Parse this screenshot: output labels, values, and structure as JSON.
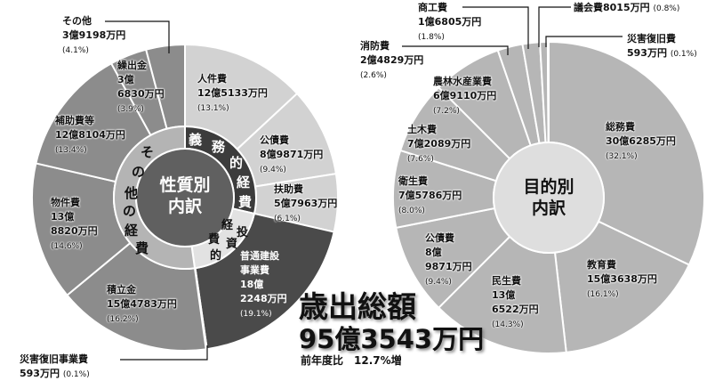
{
  "chart_data": [
    {
      "type": "pie",
      "donut": true,
      "center_label": "性質別\n内訳",
      "groups": [
        {
          "name": "義務的経費",
          "chars": [
            "義",
            "務",
            "的",
            "経",
            "費"
          ],
          "color": "#3c3c3c"
        },
        {
          "name": "投資的経費",
          "chars": [
            "経",
            "投",
            "費",
            "資",
            "的"
          ],
          "color": "#e2e2e2"
        },
        {
          "name": "その他の経費",
          "chars": [
            "そ",
            "の",
            "他",
            "の",
            "経",
            "費"
          ],
          "color": "#b4b4b4"
        }
      ],
      "slices": [
        {
          "name": "人件費",
          "amount": "12億5133万円",
          "pct": "(13.1%)",
          "value": 13.1,
          "group": 0,
          "color": "#d2d2d2"
        },
        {
          "name": "公債費",
          "amount": "8億9871万円",
          "pct": "(9.4%)",
          "value": 9.4,
          "group": 0,
          "color": "#d2d2d2"
        },
        {
          "name": "扶助費",
          "amount": "5億7963万円",
          "pct": "(6.1%)",
          "value": 6.1,
          "group": 0,
          "color": "#d2d2d2"
        },
        {
          "name": "普通建設\n事業費",
          "amount": "18億\n2248万円",
          "pct": "(19.1%)",
          "value": 19.1,
          "group": 1,
          "color": "#4a4a4a"
        },
        {
          "name": "災害復旧事業費",
          "amount": "593万円",
          "pct": "(0.1%)",
          "value": 0.1,
          "group": 1,
          "color": "#4a4a4a"
        },
        {
          "name": "積立金",
          "amount": "15億4783万円",
          "pct": "(16.2%)",
          "value": 16.2,
          "group": 2,
          "color": "#8c8c8c"
        },
        {
          "name": "物件費",
          "amount": "13億\n8820万円",
          "pct": "(14.6%)",
          "value": 14.6,
          "group": 2,
          "color": "#8c8c8c"
        },
        {
          "name": "補助費等",
          "amount": "12億8104万円",
          "pct": "(13.4%)",
          "value": 13.4,
          "group": 2,
          "color": "#8c8c8c"
        },
        {
          "name": "繰出金",
          "amount": "3億\n6830万円",
          "pct": "(3.9%)",
          "value": 3.9,
          "group": 2,
          "color": "#8c8c8c"
        },
        {
          "name": "その他",
          "amount": "3億9198万円",
          "pct": "(4.1%)",
          "value": 4.1,
          "group": 2,
          "color": "#8c8c8c"
        }
      ]
    },
    {
      "type": "pie",
      "donut": true,
      "center_label": "目的別\n内訳",
      "slices": [
        {
          "name": "総務費",
          "amount": "30億6285万円",
          "pct": "(32.1%)",
          "value": 32.1,
          "color": "#b6b6b6"
        },
        {
          "name": "教育費",
          "amount": "15億3638万円",
          "pct": "(16.1%)",
          "value": 16.1,
          "color": "#b6b6b6"
        },
        {
          "name": "民生費",
          "amount": "13億\n6522万円",
          "pct": "(14.3%)",
          "value": 14.3,
          "color": "#b6b6b6"
        },
        {
          "name": "公債費",
          "amount": "8億\n9871万円",
          "pct": "(9.4%)",
          "value": 9.4,
          "color": "#b6b6b6"
        },
        {
          "name": "衛生費",
          "amount": "7億5786万円",
          "pct": "(8.0%)",
          "value": 8.0,
          "color": "#b6b6b6"
        },
        {
          "name": "土木費",
          "amount": "7億2089万円",
          "pct": "(7.6%)",
          "value": 7.6,
          "color": "#b6b6b6"
        },
        {
          "name": "農林水産業費",
          "amount": "6億9110万円",
          "pct": "(7.2%)",
          "value": 7.2,
          "color": "#b6b6b6"
        },
        {
          "name": "消防費",
          "amount": "2億4829万円",
          "pct": "(2.6%)",
          "value": 2.6,
          "color": "#b6b6b6"
        },
        {
          "name": "商工費",
          "amount": "1億6805万円",
          "pct": "(1.8%)",
          "value": 1.8,
          "color": "#b6b6b6"
        },
        {
          "name": "議会費",
          "amount": "8015万円",
          "pct": "(0.8%)",
          "value": 0.8,
          "color": "#b6b6b6"
        },
        {
          "name": "災害復旧費",
          "amount": "593万円",
          "pct": "(0.1%)",
          "value": 0.1,
          "color": "#b6b6b6"
        }
      ]
    }
  ],
  "total": {
    "title": "歳出総額",
    "amount": "95億3543万円",
    "yoy": "前年度比　12.7%増"
  }
}
